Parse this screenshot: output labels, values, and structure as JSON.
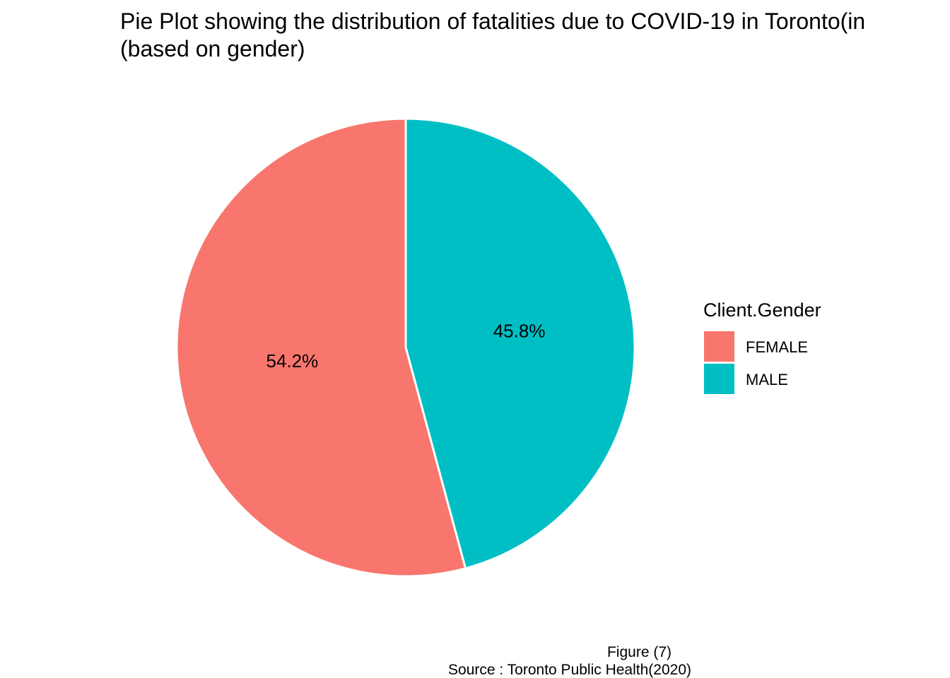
{
  "chart_data": {
    "type": "pie",
    "title": [
      "Pie Plot showing the distribution of fatalities due to COVID-19 in Toronto(in",
      "(based on gender)"
    ],
    "categories": [
      "FEMALE",
      "MALE"
    ],
    "values": [
      54.2,
      45.8
    ],
    "labels": [
      "54.2%",
      "45.8%"
    ],
    "colors": [
      "#F8766D",
      "#00BFC4"
    ],
    "legend": {
      "title": "Client.Gender",
      "placement": "right"
    },
    "caption": [
      "Figure (7)",
      "Source : Toronto Public Health(2020)"
    ]
  }
}
